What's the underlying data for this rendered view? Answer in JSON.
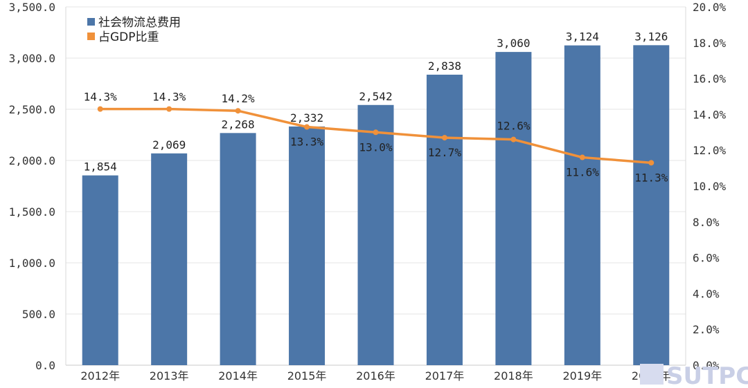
{
  "chart_data": {
    "type": "bar",
    "categories": [
      "2012年",
      "2013年",
      "2014年",
      "2015年",
      "2016年",
      "2017年",
      "2018年",
      "2019年",
      "2020年"
    ],
    "series": [
      {
        "name": "社会物流总费用",
        "type": "bar",
        "axis": "left",
        "values": [
          1854,
          2069,
          2268,
          2332,
          2542,
          2838,
          3060,
          3124,
          3126
        ],
        "labels": [
          "1,854",
          "2,069",
          "2,268",
          "2,332",
          "2,542",
          "2,838",
          "3,060",
          "3,124",
          "3,126"
        ]
      },
      {
        "name": "占GDP比重",
        "type": "line",
        "axis": "right",
        "values": [
          14.3,
          14.3,
          14.2,
          13.3,
          13.0,
          12.7,
          12.6,
          11.6,
          11.3
        ],
        "labels": [
          "14.3%",
          "14.3%",
          "14.2%",
          "13.3%",
          "13.0%",
          "12.7%",
          "12.6%",
          "11.6%",
          "11.3%"
        ]
      }
    ],
    "ylim_left": [
      0,
      3500
    ],
    "ylim_right": [
      0,
      20
    ],
    "left_ticks": [
      "0.0",
      "500.0",
      "1,000.0",
      "1,500.0",
      "2,000.0",
      "2,500.0",
      "3,000.0",
      "3,500.0"
    ],
    "right_ticks": [
      "0.0%",
      "2.0%",
      "4.0%",
      "6.0%",
      "8.0%",
      "10.0%",
      "12.0%",
      "14.0%",
      "16.0%",
      "18.0%",
      "20.0%"
    ],
    "legend_position": "top-left",
    "colors": {
      "bar": "#4c76a8",
      "line": "#f0913a",
      "grid": "#e6e6e6",
      "axis": "#c8c8c8"
    }
  },
  "watermark": {
    "text": "SUTPC"
  }
}
